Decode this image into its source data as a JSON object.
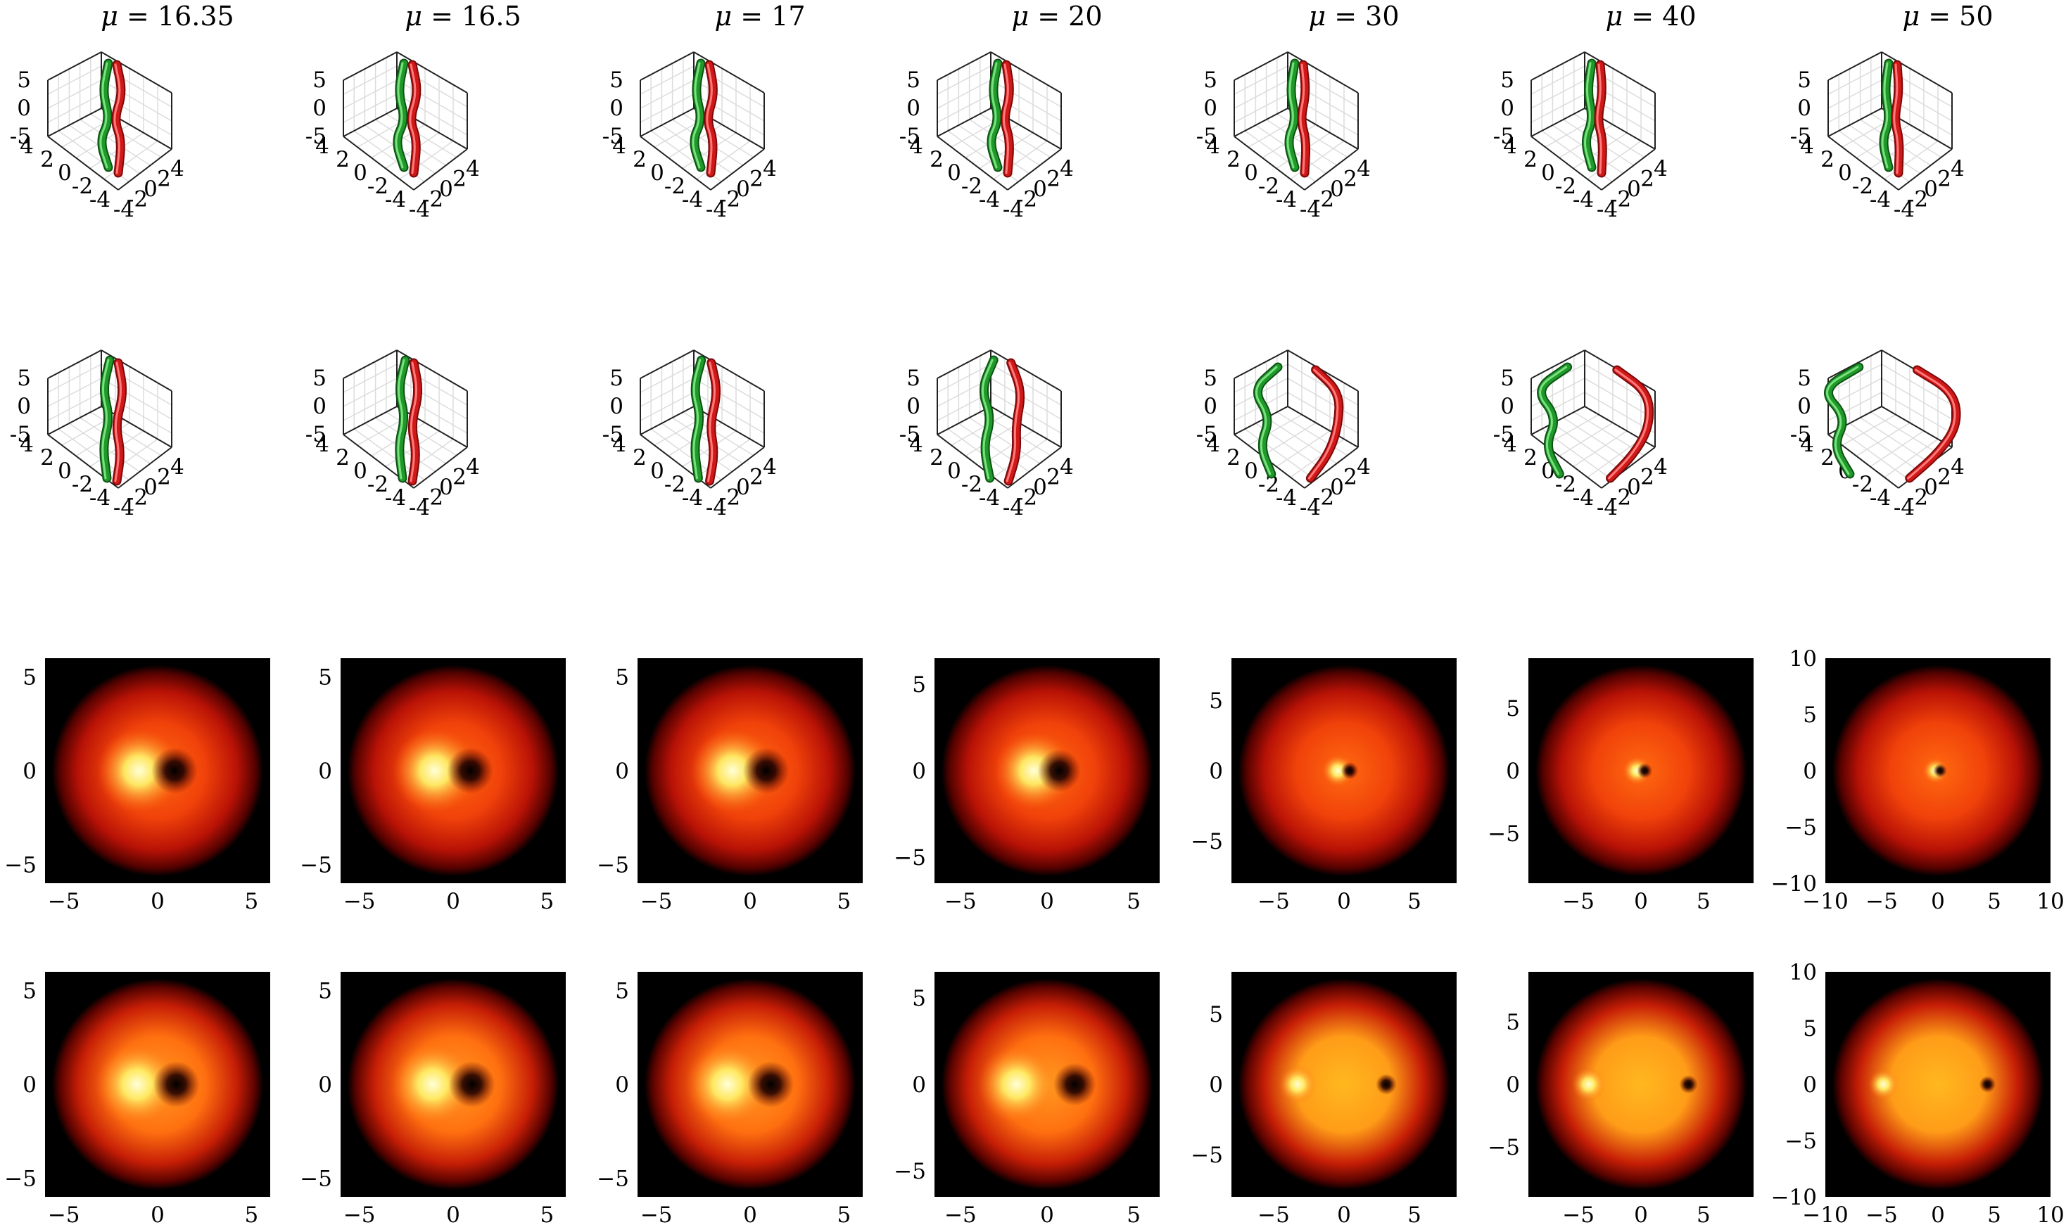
{
  "chart_data": {
    "type": "panel-grid",
    "title": "",
    "columns": [
      {
        "mu": "16.35",
        "lim": 6,
        "ticks2d": [
          -5,
          0,
          5
        ],
        "sep_top": 0.9,
        "sep_bot": 1.0,
        "bright": 1.0,
        "red_spread": 0.6,
        "green_spread": 0.6
      },
      {
        "mu": "16.5",
        "lim": 6,
        "ticks2d": [
          -5,
          0,
          5
        ],
        "sep_top": 0.9,
        "sep_bot": 1.0,
        "bright": 1.0,
        "red_spread": 0.6,
        "green_spread": 0.6
      },
      {
        "mu": "17",
        "lim": 6,
        "ticks2d": [
          -5,
          0,
          5
        ],
        "sep_top": 0.85,
        "sep_bot": 1.1,
        "bright": 1.0,
        "red_spread": 0.55,
        "green_spread": 0.6
      },
      {
        "mu": "20",
        "lim": 6.5,
        "ticks2d": [
          -5,
          0,
          5
        ],
        "sep_top": 0.7,
        "sep_bot": 1.6,
        "bright": 0.95,
        "red_spread": 0.45,
        "green_spread": 0.6
      },
      {
        "mu": "30",
        "lim": 8,
        "ticks2d": [
          -5,
          0,
          5
        ],
        "sep_top": 0.4,
        "sep_bot": 3.0,
        "bright": 0.9,
        "red_spread": 0.3,
        "green_spread": 0.5
      },
      {
        "mu": "40",
        "lim": 9,
        "ticks2d": [
          -5,
          0,
          5
        ],
        "sep_top": 0.3,
        "sep_bot": 3.8,
        "bright": 0.85,
        "red_spread": 0.25,
        "green_spread": 0.45
      },
      {
        "mu": "50",
        "lim": 10,
        "ticks2d": [
          -10,
          -5,
          0,
          5,
          10
        ],
        "sep_top": 0.2,
        "sep_bot": 4.4,
        "bright": 0.8,
        "red_spread": 0.2,
        "green_spread": 0.4
      }
    ],
    "axes3d": {
      "z_ticks": [
        "5",
        "0",
        "-5"
      ],
      "y_ticks": [
        "4",
        "2",
        "0",
        "-2",
        "-4"
      ],
      "x_ticks": [
        "-4",
        "-2",
        "0",
        "2",
        "4"
      ]
    },
    "colors": {
      "green_tube": "#1f9a2a",
      "red_tube": "#d01818",
      "heat_dark": "#000000",
      "heat_red": "#cc1100",
      "heat_yellow": "#ffee88"
    }
  }
}
